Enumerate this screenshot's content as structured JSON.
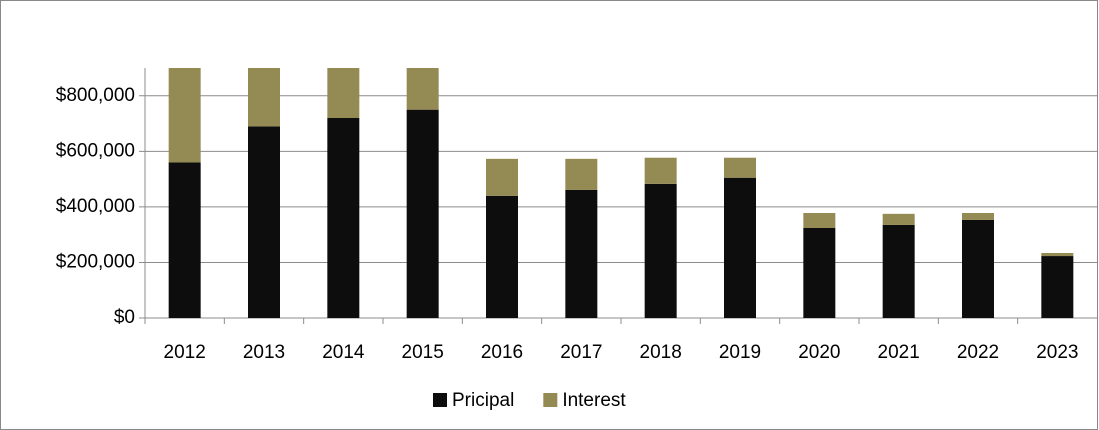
{
  "chart_data": {
    "type": "stacked-bar",
    "categories": [
      "2012",
      "2013",
      "2014",
      "2015",
      "2016",
      "2017",
      "2018",
      "2019",
      "2020",
      "2021",
      "2022",
      "2023"
    ],
    "series": [
      {
        "name": "Pricipal",
        "color": "#0d0d0d",
        "values": [
          560000,
          690000,
          720000,
          750000,
          440000,
          461000,
          483000,
          505000,
          324000,
          335000,
          353000,
          223000
        ]
      },
      {
        "name": "Interest",
        "color": "#948a54",
        "values": [
          340000,
          210000,
          180000,
          150000,
          133000,
          112000,
          94000,
          72000,
          54000,
          40000,
          25000,
          11000
        ]
      }
    ],
    "ylim": [
      0,
      900000
    ],
    "yticks": [
      {
        "value": 0,
        "label": "$0"
      },
      {
        "value": 200000,
        "label": "$200,000"
      },
      {
        "value": 400000,
        "label": "$400,000"
      },
      {
        "value": 600000,
        "label": "$600,000"
      },
      {
        "value": 800000,
        "label": "$800,000"
      }
    ],
    "grid": true,
    "legend": "bottom"
  }
}
